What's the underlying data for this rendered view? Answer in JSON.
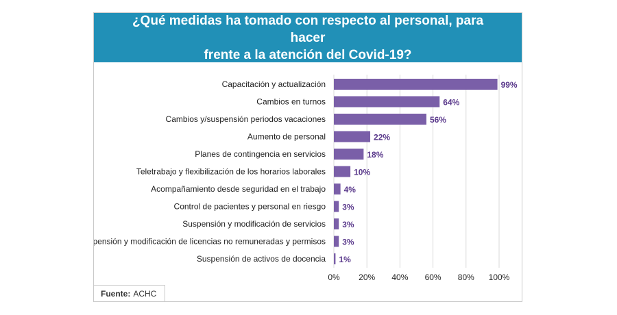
{
  "title": "¿Qué medidas ha tomado con respecto al personal, para hacer\nfrente a la atención del Covid-19?",
  "source": {
    "label": "Fuente:",
    "value": "ACHC"
  },
  "colors": {
    "header": "#2190b7",
    "bar": "#7a5fa8",
    "value_text": "#5b3a8c",
    "grid": "#d9d9d9"
  },
  "chart_data": {
    "type": "bar",
    "orientation": "horizontal",
    "title": "¿Qué medidas ha tomado con respecto al personal, para hacer frente a la atención del Covid-19?",
    "categories": [
      "Capacitación y actualización",
      "Cambios en turnos",
      "Cambios y/suspensión periodos vacaciones",
      "Aumento de personal",
      "Planes de contingencia en servicios",
      "Teletrabajo y flexibilización de los horarios laborales",
      "Acompañamiento desde seguridad en el trabajo",
      "Control de pacientes y personal en riesgo",
      "Suspensión y modificación de servicios",
      "Suspensión y modificación de licencias no remuneradas y permisos",
      "Suspensión de activos de docencia"
    ],
    "values": [
      99,
      64,
      56,
      22,
      18,
      10,
      4,
      3,
      3,
      3,
      1
    ],
    "value_labels": [
      "99%",
      "64%",
      "56%",
      "22%",
      "18%",
      "10%",
      "4%",
      "3%",
      "3%",
      "3%",
      "1%"
    ],
    "xlim": [
      0,
      100
    ],
    "xticks": [
      "0%",
      "20%",
      "40%",
      "60%",
      "80%",
      "100%"
    ],
    "xlabel": "",
    "ylabel": "",
    "grid": true
  }
}
